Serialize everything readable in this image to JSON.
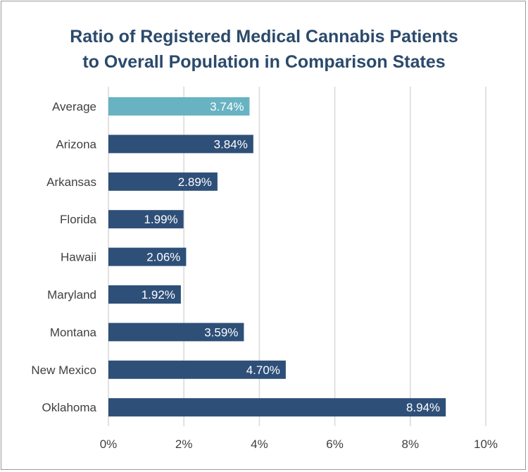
{
  "chart_data": {
    "type": "bar",
    "orientation": "horizontal",
    "title": "Ratio of Registered Medical Cannabis Patients to Overall Population in Comparison States",
    "title_lines": [
      "Ratio of Registered Medical Cannabis Patients",
      "to Overall Population in Comparison States"
    ],
    "categories": [
      "Average",
      "Arizona",
      "Arkansas",
      "Florida",
      "Hawaii",
      "Maryland",
      "Montana",
      "New Mexico",
      "Oklahoma"
    ],
    "values": [
      3.74,
      3.84,
      2.89,
      1.99,
      2.06,
      1.92,
      3.59,
      4.7,
      8.94
    ],
    "value_labels": [
      "3.74%",
      "3.84%",
      "2.89%",
      "1.99%",
      "2.06%",
      "1.92%",
      "3.59%",
      "4.70%",
      "8.94%"
    ],
    "x_ticks": [
      0,
      2,
      4,
      6,
      8,
      10
    ],
    "x_tick_labels": [
      "0%",
      "2%",
      "4%",
      "6%",
      "8%",
      "10%"
    ],
    "xlim": [
      0,
      10
    ],
    "xlabel": "",
    "ylabel": "",
    "grid": true,
    "colors": {
      "highlight": "#68b3c2",
      "bar": "#2e4f78",
      "title": "#2b4a6b",
      "grid": "#d9d9d9",
      "label": "#404040"
    },
    "highlight_category": "Average"
  }
}
